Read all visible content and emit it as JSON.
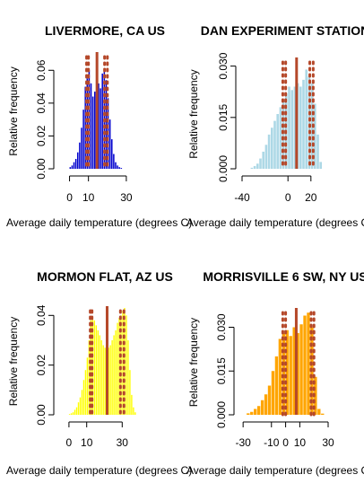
{
  "chart_data": [
    {
      "type": "bar",
      "title": "LIVERMORE, CA US",
      "xlabel": "Average daily temperature (degrees C)",
      "ylabel": "Relative frequency",
      "color": "#0000cd",
      "line_color": "#b5482a",
      "xlim": [
        -5,
        40
      ],
      "ylim": [
        0,
        0.07
      ],
      "xticks": [
        0,
        10,
        30
      ],
      "yticks": [
        0.0,
        0.02,
        0.04,
        0.06
      ],
      "bin_width": 1,
      "bins": [
        0,
        1,
        2,
        3,
        4,
        5,
        6,
        7,
        8,
        9,
        10,
        11,
        12,
        13,
        14,
        15,
        16,
        17,
        18,
        19,
        20,
        21,
        22,
        23,
        24,
        25,
        26,
        27
      ],
      "values": [
        0.001,
        0.002,
        0.004,
        0.006,
        0.01,
        0.016,
        0.025,
        0.036,
        0.05,
        0.055,
        0.06,
        0.052,
        0.044,
        0.047,
        0.05,
        0.052,
        0.049,
        0.058,
        0.06,
        0.054,
        0.043,
        0.03,
        0.018,
        0.009,
        0.004,
        0.002,
        0.001,
        0.0005
      ],
      "vlines": [
        {
          "x": 14.5,
          "style": "solid"
        },
        {
          "x": 9,
          "style": "dotted"
        },
        {
          "x": 10,
          "style": "dotted"
        },
        {
          "x": 18.5,
          "style": "dotted"
        },
        {
          "x": 20,
          "style": "dotted"
        }
      ]
    },
    {
      "type": "bar",
      "title": "DAN EXPERIMENT STATION",
      "xlabel": "Average daily temperature (degrees C)",
      "ylabel": "Relative frequency",
      "color": "#add8e6",
      "line_color": "#b5482a",
      "xlim": [
        -40,
        35
      ],
      "ylim": [
        0,
        0.032
      ],
      "xticks": [
        -40,
        0,
        20
      ],
      "yticks": [
        0.0,
        0.015,
        0.03
      ],
      "bin_width": 2.5,
      "bins": [
        -32.5,
        -30,
        -27.5,
        -25,
        -22.5,
        -20,
        -17.5,
        -15,
        -12.5,
        -10,
        -7.5,
        -5,
        -2.5,
        0,
        2.5,
        5,
        7.5,
        10,
        12.5,
        15,
        17.5,
        20,
        22.5,
        25,
        27.5
      ],
      "values": [
        0.0003,
        0.0008,
        0.0015,
        0.003,
        0.005,
        0.007,
        0.01,
        0.012,
        0.014,
        0.016,
        0.018,
        0.02,
        0.022,
        0.024,
        0.023,
        0.024,
        0.025,
        0.024,
        0.026,
        0.029,
        0.027,
        0.025,
        0.019,
        0.01,
        0.002
      ],
      "vlines": [
        {
          "x": 7.5,
          "style": "solid"
        },
        {
          "x": -4.5,
          "style": "dotted"
        },
        {
          "x": -2,
          "style": "dotted"
        },
        {
          "x": 19,
          "style": "dotted"
        },
        {
          "x": 22,
          "style": "dotted"
        }
      ]
    },
    {
      "type": "bar",
      "title": "MORMON FLAT, AZ US",
      "xlabel": "Average daily temperature (degrees C)",
      "ylabel": "Relative frequency",
      "color": "#ffff00",
      "line_color": "#b5482a",
      "xlim": [
        -5,
        45
      ],
      "ylim": [
        0,
        0.043
      ],
      "xticks": [
        0,
        10,
        30
      ],
      "yticks": [
        0.0,
        0.02,
        0.04
      ],
      "bin_width": 1,
      "bins": [
        0,
        1,
        2,
        3,
        4,
        5,
        6,
        7,
        8,
        9,
        10,
        11,
        12,
        13,
        14,
        15,
        16,
        17,
        18,
        19,
        20,
        21,
        22,
        23,
        24,
        25,
        26,
        27,
        28,
        29,
        30,
        31,
        32,
        33,
        34,
        35,
        36,
        37
      ],
      "values": [
        0.0003,
        0.0006,
        0.001,
        0.002,
        0.003,
        0.005,
        0.007,
        0.01,
        0.014,
        0.018,
        0.023,
        0.03,
        0.038,
        0.039,
        0.038,
        0.036,
        0.034,
        0.032,
        0.03,
        0.028,
        0.027,
        0.026,
        0.027,
        0.028,
        0.03,
        0.032,
        0.034,
        0.037,
        0.039,
        0.04,
        0.042,
        0.043,
        0.04,
        0.03,
        0.018,
        0.008,
        0.003,
        0.001
      ],
      "vlines": [
        {
          "x": 21.5,
          "style": "solid"
        },
        {
          "x": 12,
          "style": "dotted"
        },
        {
          "x": 13,
          "style": "dotted"
        },
        {
          "x": 29,
          "style": "dotted"
        },
        {
          "x": 31,
          "style": "dotted"
        }
      ]
    },
    {
      "type": "bar",
      "title": "MORRISVILLE 6 SW, NY US",
      "xlabel": "Average daily temperature (degrees C)",
      "ylabel": "Relative frequency",
      "color": "#ffa500",
      "line_color": "#b5482a",
      "xlim": [
        -32,
        30
      ],
      "ylim": [
        0,
        0.036
      ],
      "xticks": [
        -30,
        -10,
        0,
        10,
        30
      ],
      "yticks": [
        0.0,
        0.015,
        0.03
      ],
      "bin_width": 2.5,
      "bins": [
        -27.5,
        -25,
        -22.5,
        -20,
        -17.5,
        -15,
        -12.5,
        -10,
        -7.5,
        -5,
        -2.5,
        0,
        2.5,
        5,
        7.5,
        10,
        12.5,
        15,
        17.5,
        20,
        22.5,
        25
      ],
      "values": [
        0.0005,
        0.001,
        0.002,
        0.003,
        0.005,
        0.007,
        0.01,
        0.015,
        0.02,
        0.026,
        0.028,
        0.029,
        0.027,
        0.03,
        0.028,
        0.031,
        0.034,
        0.035,
        0.03,
        0.013,
        0.002,
        0.0004
      ],
      "vlines": [
        {
          "x": 7.5,
          "style": "solid"
        },
        {
          "x": -2,
          "style": "dotted"
        },
        {
          "x": 0,
          "style": "dotted"
        },
        {
          "x": 18,
          "style": "dotted"
        },
        {
          "x": 20,
          "style": "dotted"
        }
      ]
    }
  ]
}
